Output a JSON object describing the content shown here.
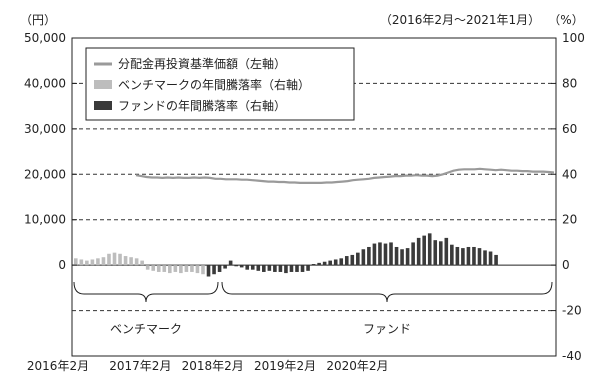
{
  "chart_data": {
    "type": "bar",
    "period_note": "（2016年2月～2021年1月）",
    "left_unit": "（円）",
    "right_unit": "（%）",
    "left_axis": {
      "ticks": [
        "50,000",
        "40,000",
        "30,000",
        "20,000",
        "10,000",
        "0"
      ],
      "ylim": [
        0,
        50000
      ]
    },
    "right_axis": {
      "ticks": [
        "100",
        "80",
        "60",
        "40",
        "20",
        "0",
        "-20",
        "-40"
      ],
      "ylim": [
        -40,
        100
      ]
    },
    "x_tick_labels": [
      "2016年2月",
      "2017年2月",
      "2018年2月",
      "2019年2月",
      "2020年2月"
    ],
    "dashed_grid_right_values": [
      80,
      60,
      40,
      20,
      -20
    ],
    "legend": [
      {
        "label": "分配金再投資基準価額（左軸）",
        "style": "line",
        "color": "#9a9a9a"
      },
      {
        "label": "ベンチマークの年間騰落率（右軸）",
        "style": "bar",
        "color": "#bdbdbd"
      },
      {
        "label": "ファンドの年間騰落率（右軸）",
        "style": "bar",
        "color": "#3a3a3a"
      }
    ],
    "nav_line": [
      19800,
      19600,
      19400,
      19300,
      19300,
      19200,
      19300,
      19200,
      19300,
      19200,
      19200,
      19300,
      19200,
      19300,
      19200,
      19000,
      19000,
      18900,
      18900,
      18900,
      18800,
      18800,
      18700,
      18600,
      18500,
      18400,
      18400,
      18300,
      18300,
      18200,
      18200,
      18100,
      18100,
      18100,
      18100,
      18100,
      18200,
      18200,
      18300,
      18400,
      18500,
      18700,
      18800,
      18900,
      19000,
      19200,
      19300,
      19400,
      19500,
      19600,
      19600,
      19700,
      19700,
      19800,
      19700,
      19700,
      19600,
      19700,
      20000,
      20400,
      20800,
      21000,
      21100,
      21100,
      21100,
      21200,
      21100,
      21000,
      20900,
      21000,
      20900,
      20800,
      20800,
      20700,
      20700,
      20600,
      20600,
      20600,
      20500,
      20400
    ],
    "benchmark_bars": [
      3,
      2.5,
      2,
      2.5,
      3,
      3.5,
      5,
      5.5,
      5,
      4,
      3.5,
      3,
      2,
      -2,
      -2.5,
      -3,
      -3,
      -3.5,
      -3,
      -3.5,
      -3,
      -3,
      -3.5,
      -4
    ],
    "fund_bars": [
      -5,
      -4,
      -3,
      -1.5,
      2,
      -0.5,
      -1,
      -2,
      -2,
      -2.5,
      -3,
      -2.5,
      -3,
      -3,
      -3.5,
      -3,
      -3,
      -3,
      -2.5,
      0.5,
      1,
      1.5,
      2,
      2.5,
      3,
      4,
      4.5,
      5.5,
      7,
      8,
      9.5,
      10,
      9.5,
      10,
      8,
      7,
      7.5,
      10,
      12,
      13,
      14,
      11,
      10.5,
      12,
      9,
      8,
      7.5,
      8,
      8,
      7.5,
      6.5,
      6,
      4.5
    ],
    "brackets": [
      {
        "label": "ベンチマーク"
      },
      {
        "label": "ファンド"
      }
    ]
  }
}
